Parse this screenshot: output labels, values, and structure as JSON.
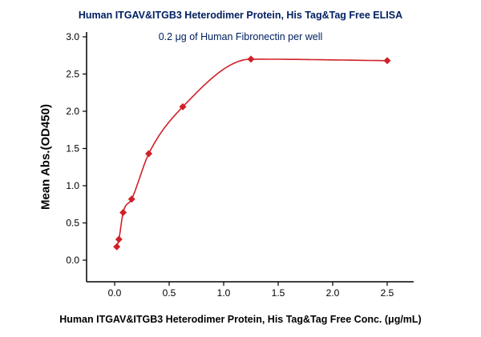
{
  "chart_data": {
    "type": "scatter",
    "title": "Human ITGAV&ITGB3 Heterodimer Protein, His Tag&Tag Free ELISA",
    "subtitle": "0.2 μg of Human Fibronectin per well",
    "xlabel": "Human ITGAV&ITGB3 Heterodimer Protein, His Tag&Tag Free Conc. (μg/mL)",
    "ylabel": "Mean Abs.(OD450)",
    "x": [
      0.0195,
      0.039,
      0.078,
      0.156,
      0.313,
      0.625,
      1.25,
      2.5
    ],
    "y": [
      0.18,
      0.28,
      0.64,
      0.82,
      1.43,
      2.06,
      2.7,
      2.68
    ],
    "x_ticks": [
      0.0,
      0.5,
      1.0,
      1.5,
      2.0,
      2.5
    ],
    "y_ticks": [
      0.0,
      0.5,
      1.0,
      1.5,
      2.0,
      2.5,
      3.0
    ],
    "xlim": [
      -0.26,
      2.74
    ],
    "ylim": [
      -0.29,
      3.07
    ],
    "curve": "4PL dose-response fit through points",
    "grid": false,
    "legend": false,
    "point_marker": "diamond",
    "point_color": "#d02028",
    "curve_color": "#d02028",
    "axis_color": "#000000",
    "title_color": "#002060"
  }
}
